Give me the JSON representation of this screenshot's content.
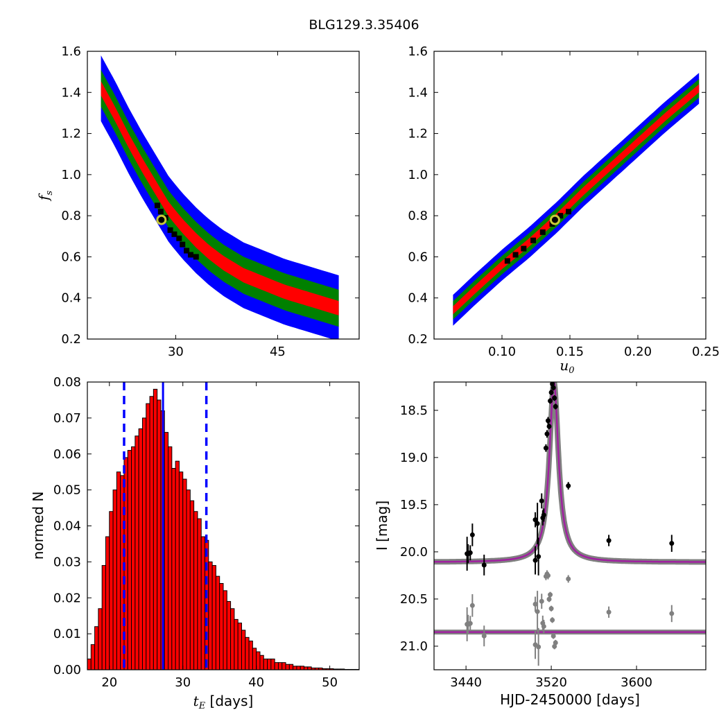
{
  "figure": {
    "title": "BLG129.3.35406"
  },
  "colors": {
    "sigma1": "#ff0000",
    "sigma2": "#008000",
    "sigma3": "#0000ff",
    "best_points": "#000000",
    "marker_edge": "#c8c83a",
    "model": "#a020a0",
    "model_band": "#808080",
    "residual": "#808080",
    "hist_bar": "#ff0000",
    "median_line": "#0000ff"
  },
  "chart_data": [
    {
      "type": "heatmap",
      "panel": "top-left",
      "title": "",
      "xlabel": "",
      "ylabel": "f_s",
      "xlim": [
        17,
        57
      ],
      "ylim": [
        0.2,
        1.6
      ],
      "xticks": [
        30,
        45
      ],
      "yticks": [
        0.2,
        0.4,
        0.6,
        0.8,
        1.0,
        1.2,
        1.4,
        1.6
      ],
      "ytick_labels": [
        "0.2",
        "0.4",
        "0.6",
        "0.8",
        "1.0",
        "1.2",
        "1.4",
        "1.6"
      ],
      "confidence_ridge": {
        "x": [
          19,
          21,
          23,
          25,
          27,
          29,
          31,
          33,
          35,
          37,
          40,
          43,
          46,
          50,
          52,
          54
        ],
        "y": [
          1.42,
          1.3,
          1.17,
          1.05,
          0.94,
          0.83,
          0.75,
          0.68,
          0.62,
          0.57,
          0.51,
          0.47,
          0.43,
          0.39,
          0.37,
          0.35
        ],
        "half_widths": [
          0.035,
          0.09,
          0.16
        ]
      },
      "best_samples": [
        {
          "x": 27.3,
          "y": 0.85
        },
        {
          "x": 27.8,
          "y": 0.82
        },
        {
          "x": 28.5,
          "y": 0.79
        },
        {
          "x": 29.2,
          "y": 0.73
        },
        {
          "x": 29.8,
          "y": 0.71
        },
        {
          "x": 30.5,
          "y": 0.69
        },
        {
          "x": 31.0,
          "y": 0.66
        },
        {
          "x": 31.6,
          "y": 0.63
        },
        {
          "x": 32.2,
          "y": 0.61
        },
        {
          "x": 33.0,
          "y": 0.6
        }
      ],
      "best_fit": {
        "x": 27.9,
        "y": 0.78
      }
    },
    {
      "type": "heatmap",
      "panel": "top-right",
      "title": "",
      "xlabel": "u_0",
      "ylabel": "",
      "xlim": [
        0.05,
        0.25
      ],
      "ylim": [
        0.2,
        1.6
      ],
      "xticks": [
        0.1,
        0.15,
        0.2,
        0.25
      ],
      "xtick_labels": [
        "0.10",
        "0.15",
        "0.20",
        "0.25"
      ],
      "yticks": [
        0.2,
        0.4,
        0.6,
        0.8,
        1.0,
        1.2,
        1.4,
        1.6
      ],
      "ytick_labels": [
        "0.2",
        "0.4",
        "0.6",
        "0.8",
        "1.0",
        "1.2",
        "1.4",
        "1.6"
      ],
      "confidence_ridge": {
        "x": [
          0.064,
          0.08,
          0.1,
          0.12,
          0.14,
          0.16,
          0.18,
          0.2,
          0.22,
          0.245
        ],
        "y": [
          0.34,
          0.44,
          0.56,
          0.67,
          0.79,
          0.92,
          1.04,
          1.16,
          1.28,
          1.42
        ],
        "half_widths": [
          0.02,
          0.045,
          0.075
        ]
      },
      "best_samples": [
        {
          "x": 0.104,
          "y": 0.58
        },
        {
          "x": 0.11,
          "y": 0.61
        },
        {
          "x": 0.116,
          "y": 0.64
        },
        {
          "x": 0.123,
          "y": 0.68
        },
        {
          "x": 0.13,
          "y": 0.72
        },
        {
          "x": 0.137,
          "y": 0.76
        },
        {
          "x": 0.143,
          "y": 0.8
        },
        {
          "x": 0.149,
          "y": 0.82
        }
      ],
      "best_fit": {
        "x": 0.139,
        "y": 0.78
      }
    },
    {
      "type": "bar",
      "panel": "bottom-left",
      "title": "",
      "xlabel": "t_E [days]",
      "ylabel": "normed N",
      "xlim": [
        17,
        54
      ],
      "ylim": [
        0,
        0.08
      ],
      "xticks": [
        20,
        30,
        40,
        50
      ],
      "xtick_labels": [
        "20",
        "30",
        "40",
        "50"
      ],
      "yticks": [
        0,
        0.01,
        0.02,
        0.03,
        0.04,
        0.05,
        0.06,
        0.07,
        0.08
      ],
      "ytick_labels": [
        "0.00",
        "0.01",
        "0.02",
        "0.03",
        "0.04",
        "0.05",
        "0.06",
        "0.07",
        "0.08"
      ],
      "bin_start": 17,
      "bin_width": 0.5,
      "values": [
        0.003,
        0.007,
        0.012,
        0.017,
        0.029,
        0.037,
        0.044,
        0.05,
        0.055,
        0.054,
        0.059,
        0.061,
        0.062,
        0.065,
        0.067,
        0.07,
        0.074,
        0.076,
        0.078,
        0.075,
        0.072,
        0.066,
        0.062,
        0.056,
        0.058,
        0.055,
        0.053,
        0.05,
        0.047,
        0.044,
        0.042,
        0.037,
        0.036,
        0.03,
        0.029,
        0.026,
        0.024,
        0.022,
        0.019,
        0.017,
        0.014,
        0.013,
        0.011,
        0.009,
        0.008,
        0.006,
        0.005,
        0.004,
        0.003,
        0.003,
        0.003,
        0.002,
        0.002,
        0.002,
        0.0015,
        0.0015,
        0.001,
        0.001,
        0.001,
        0.0008,
        0.0008,
        0.0005,
        0.0005,
        0.0005,
        0.0003,
        0.0003,
        0.0003,
        0.0002,
        0.0002,
        0.0002,
        0.0001,
        0.0001,
        0.0001,
        0.0001
      ],
      "median": 27.3,
      "lower": 22.0,
      "upper": 33.2
    },
    {
      "type": "scatter",
      "panel": "bottom-right",
      "title": "",
      "xlabel": "HJD-2450000 [days]",
      "ylabel": "I [mag]",
      "xlim": [
        3410,
        3665
      ],
      "ylim": [
        21.25,
        18.2
      ],
      "xticks": [
        3440,
        3520,
        3600
      ],
      "xtick_labels": [
        "3440",
        "3520",
        "3600"
      ],
      "yticks": [
        18.5,
        19.0,
        19.5,
        20.0,
        20.5,
        21.0
      ],
      "ytick_labels": [
        "18.5",
        "19.0",
        "19.5",
        "20.0",
        "20.5",
        "21.0"
      ],
      "model": {
        "t0": 3522.5,
        "baseline": 20.11,
        "peak": 18.2,
        "tau": 5.2,
        "residual_offset": 20.85
      },
      "points": [
        {
          "x": 3441,
          "y": 20.02,
          "err": 0.18
        },
        {
          "x": 3442,
          "y": 20.02,
          "err": 0.1
        },
        {
          "x": 3444,
          "y": 20.01,
          "err": 0.08
        },
        {
          "x": 3446,
          "y": 19.82,
          "err": 0.12
        },
        {
          "x": 3457,
          "y": 20.14,
          "err": 0.11
        },
        {
          "x": 3505,
          "y": 19.66,
          "err": 0.08
        },
        {
          "x": 3505,
          "y": 20.09,
          "err": 0.15
        },
        {
          "x": 3507,
          "y": 19.7,
          "err": 0.22
        },
        {
          "x": 3508,
          "y": 20.05,
          "err": 0.2
        },
        {
          "x": 3511,
          "y": 19.46,
          "err": 0.08
        },
        {
          "x": 3512,
          "y": 19.64,
          "err": 0.08
        },
        {
          "x": 3513,
          "y": 19.61,
          "err": 0.07
        },
        {
          "x": 3515,
          "y": 18.9,
          "err": 0.04
        },
        {
          "x": 3516,
          "y": 18.75,
          "err": 0.04
        },
        {
          "x": 3517,
          "y": 18.61,
          "err": 0.04
        },
        {
          "x": 3518,
          "y": 18.67,
          "err": 0.03
        },
        {
          "x": 3519,
          "y": 18.4,
          "err": 0.03
        },
        {
          "x": 3520,
          "y": 18.31,
          "err": 0.03
        },
        {
          "x": 3521,
          "y": 18.22,
          "err": 0.03
        },
        {
          "x": 3522,
          "y": 18.26,
          "err": 0.03
        },
        {
          "x": 3523,
          "y": 18.37,
          "err": 0.03
        },
        {
          "x": 3524,
          "y": 18.46,
          "err": 0.03
        },
        {
          "x": 3536,
          "y": 19.3,
          "err": 0.04
        },
        {
          "x": 3574,
          "y": 19.88,
          "err": 0.06
        },
        {
          "x": 3633,
          "y": 19.91,
          "err": 0.09
        }
      ]
    }
  ]
}
